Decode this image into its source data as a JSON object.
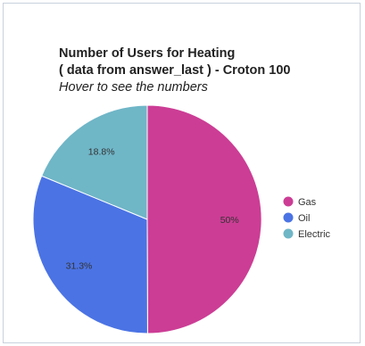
{
  "chart_data": {
    "type": "pie",
    "title_lines": [
      "Number of Users for Heating",
      "( data from answer_last ) - Croton 100"
    ],
    "subtitle": "Hover to see the numbers",
    "slices": [
      {
        "name": "Gas",
        "value": 50,
        "label": "50%",
        "color": "#cc3d95"
      },
      {
        "name": "Oil",
        "value": 31.3,
        "label": "31.3%",
        "color": "#4b73e4"
      },
      {
        "name": "Electric",
        "value": 18.8,
        "label": "18.8%",
        "color": "#6fb6c7"
      }
    ],
    "legend_position": "right",
    "start": "12 o'clock",
    "direction": "clockwise"
  }
}
